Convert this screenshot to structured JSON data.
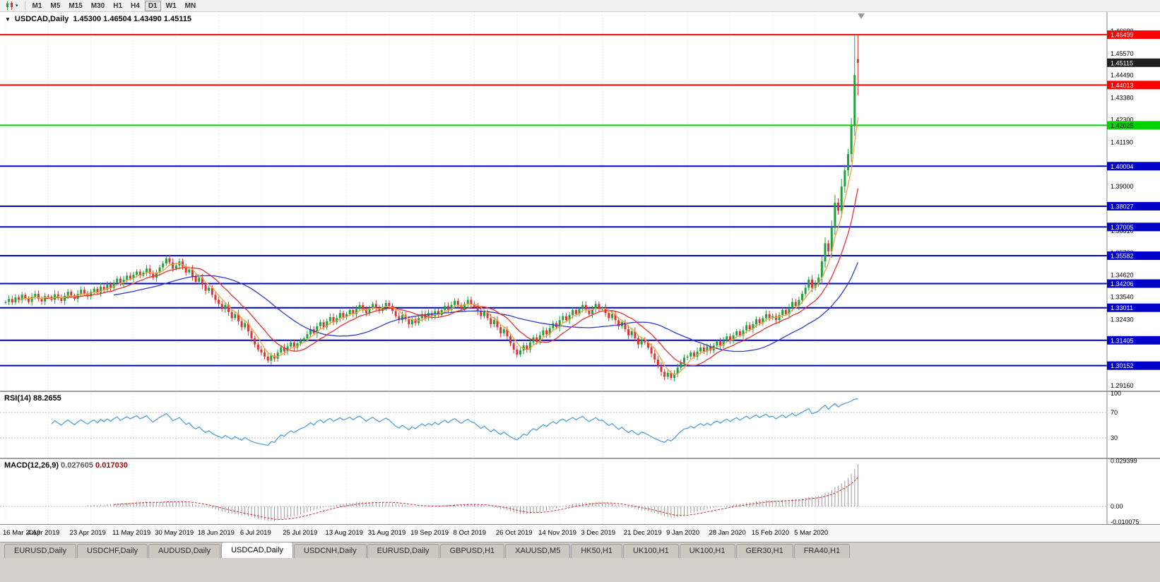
{
  "toolbar": {
    "chart_type_icon": "candlestick-chart-icon",
    "dropdown_icon": "chevron-down-icon",
    "periods": [
      "M1",
      "M5",
      "M15",
      "M30",
      "H1",
      "H4",
      "D1",
      "W1",
      "MN"
    ],
    "active_period": "D1"
  },
  "chart": {
    "title_symbol": "USDCAD,Daily",
    "title_ohlc": "1.45300 1.46504 1.43490 1.45115"
  },
  "tabs": [
    "EURUSD,Daily",
    "USDCHF,Daily",
    "AUDUSD,Daily",
    "USDCAD,Daily",
    "USDCNH,Daily",
    "EURUSD,Daily",
    "GBPUSD,H1",
    "XAUUSD,M5",
    "HK50,H1",
    "UK100,H1",
    "UK100,H1",
    "GER30,H1",
    "FRA40,H1"
  ],
  "active_tab_index": 3,
  "colors": {
    "candle_up": "#1fa13c",
    "candle_down": "#e03232",
    "ma_fast": "#f0a43c",
    "ma_mid": "#e03232",
    "ma_slow": "#2c3cc8",
    "rsi_line": "#53a1dc",
    "macd_hist": "#9a9a9a",
    "macd_signal": "#d42a2a",
    "grid": "#dadada",
    "tag_current_bg": "#1f1f1f"
  },
  "chart_data": {
    "type": "candlestick",
    "title": "USDCAD,Daily",
    "symbol": "USDCAD",
    "timeframe": "Daily",
    "last_ohlc": {
      "open": 1.453,
      "high": 1.46504,
      "low": 1.4349,
      "close": 1.45115
    },
    "x_labels": [
      "16 Mar 2019",
      "4 Apr 2019",
      "23 Apr 2019",
      "11 May 2019",
      "30 May 2019",
      "18 Jun 2019",
      "6 Jul 2019",
      "25 Jul 2019",
      "13 Aug 2019",
      "31 Aug 2019",
      "19 Sep 2019",
      "8 Oct 2019",
      "26 Oct 2019",
      "14 Nov 2019",
      "3 Dec 2019",
      "21 Dec 2019",
      "9 Jan 2020",
      "28 Jan 2020",
      "15 Feb 2020",
      "5 Mar 2020"
    ],
    "y_axis_labels": [
      "1.46680",
      "1.45570",
      "1.44490",
      "1.43380",
      "1.42300",
      "1.41190",
      "1.40110",
      "1.39000",
      "1.37920",
      "1.36810",
      "1.35730",
      "1.34620",
      "1.33540",
      "1.32430",
      "1.31350",
      "1.30240",
      "1.29160"
    ],
    "price_lines": [
      {
        "price": 1.46499,
        "color": "#ff0000",
        "tag": "1.46499",
        "tag_text": "#ffffff"
      },
      {
        "price": 1.44013,
        "color": "#ff0000",
        "tag": "1.44013",
        "tag_text": "#ffffff"
      },
      {
        "price": 1.42025,
        "color": "#00d400",
        "tag": "1.42025",
        "tag_text": "#000000"
      },
      {
        "price": 1.40004,
        "color": "#0000c8",
        "tag": "1.40004",
        "tag_text": "#ffffff"
      },
      {
        "price": 1.38027,
        "color": "#0000c8",
        "tag": "1.38027",
        "tag_text": "#ffffff"
      },
      {
        "price": 1.37005,
        "color": "#0000c8",
        "tag": "1.37005",
        "tag_text": "#ffffff"
      },
      {
        "price": 1.35582,
        "color": "#0000c8",
        "tag": "1.35582",
        "tag_text": "#ffffff"
      },
      {
        "price": 1.34206,
        "color": "#0000c8",
        "tag": "1.34206",
        "tag_text": "#ffffff"
      },
      {
        "price": 1.33011,
        "color": "#0000c8",
        "tag": "1.33011",
        "tag_text": "#ffffff"
      },
      {
        "price": 1.31405,
        "color": "#0000c8",
        "tag": "1.31405",
        "tag_text": "#ffffff"
      },
      {
        "price": 1.30152,
        "color": "#0000c8",
        "tag": "1.30152",
        "tag_text": "#ffffff"
      }
    ],
    "current_price_tag": {
      "price": 1.45115,
      "text": "1.45115"
    },
    "moving_averages": [
      {
        "name": "fast",
        "period": 5
      },
      {
        "name": "mid",
        "period": 13
      },
      {
        "name": "slow",
        "period": 34
      }
    ],
    "rsi": {
      "label": "RSI(14)",
      "period": 14,
      "value": "88.2655",
      "levels": [
        "100",
        "70",
        "30"
      ]
    },
    "macd": {
      "label": "MACD(12,26,9)",
      "fast": 12,
      "slow": 26,
      "signal": 9,
      "value_main": "0.027605",
      "value_signal": "0.017030",
      "axis_labels": [
        "0.029399",
        "0.00",
        "-0.010075"
      ]
    },
    "closes": [
      1.333,
      1.3345,
      1.3328,
      1.3352,
      1.334,
      1.3365,
      1.3348,
      1.333,
      1.3355,
      1.337,
      1.3345,
      1.3332,
      1.336,
      1.3355,
      1.334,
      1.3368,
      1.3352,
      1.3335,
      1.336,
      1.338,
      1.3362,
      1.3345,
      1.337,
      1.339,
      1.3372,
      1.3358,
      1.338,
      1.3395,
      1.3375,
      1.3405,
      1.339,
      1.3415,
      1.34,
      1.3425,
      1.3445,
      1.342,
      1.344,
      1.346,
      1.3445,
      1.3465,
      1.348,
      1.346,
      1.3475,
      1.3495,
      1.347,
      1.345,
      1.3475,
      1.35,
      1.352,
      1.3545,
      1.3525,
      1.3495,
      1.351,
      1.353,
      1.3505,
      1.3475,
      1.349,
      1.3455,
      1.343,
      1.345,
      1.3415,
      1.3385,
      1.34,
      1.3365,
      1.334,
      1.332,
      1.3295,
      1.3315,
      1.328,
      1.325,
      1.327,
      1.3235,
      1.3205,
      1.3225,
      1.3185,
      1.315,
      1.312,
      1.3095,
      1.308,
      1.306,
      1.304,
      1.3065,
      1.305,
      1.308,
      1.3105,
      1.3085,
      1.311,
      1.313,
      1.3105,
      1.3125,
      1.314,
      1.315,
      1.317,
      1.3195,
      1.3175,
      1.321,
      1.323,
      1.3205,
      1.3235,
      1.3255,
      1.323,
      1.325,
      1.3275,
      1.3255,
      1.327,
      1.329,
      1.327,
      1.3295,
      1.3315,
      1.3295,
      1.3275,
      1.33,
      1.332,
      1.33,
      1.3285,
      1.3305,
      1.3325,
      1.331,
      1.3285,
      1.326,
      1.324,
      1.3265,
      1.3245,
      1.322,
      1.3245,
      1.3225,
      1.325,
      1.327,
      1.325,
      1.3275,
      1.326,
      1.3285,
      1.3265,
      1.329,
      1.331,
      1.329,
      1.3315,
      1.3335,
      1.3315,
      1.3295,
      1.332,
      1.334,
      1.332,
      1.331,
      1.3285,
      1.326,
      1.328,
      1.325,
      1.322,
      1.324,
      1.3205,
      1.3175,
      1.3195,
      1.316,
      1.3125,
      1.3095,
      1.307,
      1.309,
      1.3115,
      1.3095,
      1.313,
      1.3155,
      1.3135,
      1.3165,
      1.319,
      1.317,
      1.32,
      1.3225,
      1.3205,
      1.324,
      1.326,
      1.324,
      1.3265,
      1.329,
      1.327,
      1.3295,
      1.3315,
      1.329,
      1.327,
      1.3295,
      1.332,
      1.3295,
      1.33,
      1.3275,
      1.325,
      1.327,
      1.324,
      1.321,
      1.323,
      1.3195,
      1.3165,
      1.3185,
      1.315,
      1.312,
      1.3145,
      1.313,
      1.3105,
      1.3075,
      1.3045,
      1.3015,
      1.2985,
      1.296,
      1.298,
      1.2955,
      1.2975,
      1.3005,
      1.303,
      1.3055,
      1.306,
      1.308,
      1.306,
      1.3085,
      1.3105,
      1.3085,
      1.311,
      1.309,
      1.3115,
      1.3135,
      1.3115,
      1.314,
      1.316,
      1.314,
      1.3165,
      1.3185,
      1.3165,
      1.319,
      1.3215,
      1.3195,
      1.322,
      1.3245,
      1.3225,
      1.325,
      1.327,
      1.325,
      1.326,
      1.324,
      1.3265,
      1.329,
      1.327,
      1.33,
      1.333,
      1.331,
      1.334,
      1.337,
      1.34,
      1.344,
      1.34,
      1.342,
      1.345,
      1.353,
      1.362,
      1.358,
      1.37,
      1.382,
      1.378,
      1.39,
      1.398,
      1.406,
      1.42,
      1.445,
      1.4511
    ],
    "candle_overrides": {
      "259": {
        "open": 1.42,
        "high": 1.4645,
        "low": 1.415,
        "close": 1.445
      },
      "260": {
        "open": 1.453,
        "high": 1.46504,
        "low": 1.4349,
        "close": 1.45115
      }
    }
  }
}
